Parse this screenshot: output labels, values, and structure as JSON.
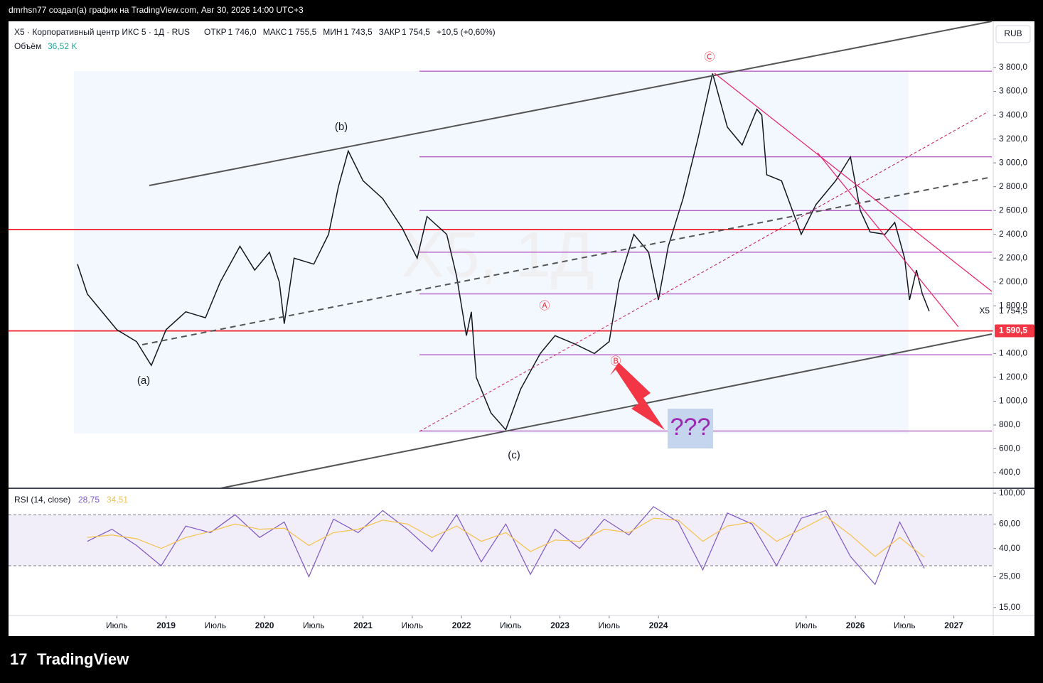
{
  "header": "dmrhsn77 создал(а) график на TradingView.com, Авг 30, 2026 14:00 UTC+3",
  "brand": "TradingView",
  "chart_data": {
    "type": "line",
    "symbol": "X5 · Корпоративный центр ИКС 5 · 1Д · RUS",
    "ohlc": [
      {
        "name": "ОТКР",
        "label": "1 746,0"
      },
      {
        "name": "МАКС",
        "label": "1 755,5"
      },
      {
        "name": "МИН",
        "label": "1 743,5"
      },
      {
        "name": "ЗАКР",
        "label": "1 754,5"
      }
    ],
    "change": "+10,5 (+0,60%)",
    "volume_name": "Объём",
    "volume_label": "36,52 K",
    "watermark": "X5, 1Д",
    "currency": "RUB",
    "series_name": "X5",
    "color": "#131722",
    "x": [
      2018.1,
      2018.2,
      2018.35,
      2018.5,
      2018.7,
      2018.85,
      2019.0,
      2019.2,
      2019.4,
      2019.55,
      2019.75,
      2019.9,
      2020.05,
      2020.15,
      2020.2,
      2020.3,
      2020.5,
      2020.65,
      2020.75,
      2020.85,
      2021.0,
      2021.2,
      2021.4,
      2021.55,
      2021.65,
      2021.85,
      2021.95,
      2022.05,
      2022.1,
      2022.15,
      2022.3,
      2022.45,
      2022.6,
      2022.8,
      2022.95,
      2023.15,
      2023.35,
      2023.5,
      2023.6,
      2023.75,
      2023.9,
      2024.0,
      2024.1,
      2024.25,
      2024.4,
      2024.55,
      2024.7,
      2024.85,
      2025.0,
      2025.05,
      2025.1,
      2025.25,
      2025.45,
      2025.6,
      2025.8,
      2025.95,
      2026.05,
      2026.15,
      2026.3,
      2026.4,
      2026.5,
      2026.55,
      2026.62,
      2026.68,
      2026.75
    ],
    "values": [
      2150,
      1900,
      1750,
      1600,
      1500,
      1300,
      1600,
      1750,
      1700,
      2000,
      2300,
      2100,
      2250,
      2000,
      1650,
      2200,
      2150,
      2400,
      2800,
      3100,
      2850,
      2700,
      2450,
      2200,
      2550,
      2400,
      2050,
      1550,
      1750,
      1200,
      900,
      760,
      1100,
      1400,
      1550,
      1480,
      1400,
      1500,
      2000,
      2400,
      2250,
      1850,
      2300,
      2700,
      3200,
      3750,
      3300,
      3150,
      3450,
      3400,
      2900,
      2850,
      2400,
      2650,
      2850,
      3050,
      2600,
      2420,
      2400,
      2500,
      2200,
      1850,
      2100,
      1900,
      1754.5
    ],
    "last_label": "1 754,5",
    "levels": [
      {
        "value": 3770,
        "color": "#9c27b0"
      },
      {
        "value": 3050,
        "color": "#9c27b0"
      },
      {
        "value": 2600,
        "color": "#9c27b0"
      },
      {
        "value": 2440,
        "color": "#f23645"
      },
      {
        "value": 2250,
        "color": "#9c27b0"
      },
      {
        "value": 1900,
        "color": "#9c27b0"
      },
      {
        "value": 1590.5,
        "label": "1 590,5",
        "color": "#f23645"
      },
      {
        "value": 1390,
        "color": "#9c27b0"
      },
      {
        "value": 750,
        "color": "#9c27b0"
      }
    ],
    "waves": [
      "(a)",
      "(b)",
      "(c)",
      "Ⓐ",
      "Ⓑ",
      "Ⓒ"
    ],
    "question": "???",
    "xlim": [
      2017.4,
      2027.4
    ],
    "xticks": [
      {
        "value": 2018.5,
        "label": "Июль"
      },
      2019,
      {
        "value": 2019.5,
        "label": "Июль"
      },
      2020,
      {
        "value": 2020.5,
        "label": "Июль"
      },
      2021,
      {
        "value": 2021.5,
        "label": "Июль"
      },
      2022,
      {
        "value": 2022.5,
        "label": "Июль"
      },
      2023,
      {
        "value": 2023.5,
        "label": "Июль"
      },
      2024,
      {
        "value": 2025.5,
        "label": "Июль"
      },
      2026,
      {
        "value": 2026.5,
        "label": "Июль"
      },
      2027
    ],
    "ylim": [
      269,
      4188
    ],
    "yticks": [
      {
        "value": 400,
        "label": "400,0"
      },
      {
        "value": 600,
        "label": "600,0"
      },
      {
        "value": 800,
        "label": "800,0"
      },
      {
        "value": 1000,
        "label": "1 000,0"
      },
      {
        "value": 1200,
        "label": "1 200,0"
      },
      {
        "value": 1400,
        "label": "1 400,0"
      },
      {
        "value": 1800,
        "label": "1 800,0"
      },
      {
        "value": 2000,
        "label": "2 000,0"
      },
      {
        "value": 2200,
        "label": "2 200,0"
      },
      {
        "value": 2400,
        "label": "2 400,0"
      },
      {
        "value": 2600,
        "label": "2 600,0"
      },
      {
        "value": 2800,
        "label": "2 800,0"
      },
      {
        "value": 3000,
        "label": "3 000,0"
      },
      {
        "value": 3200,
        "label": "3 200,0"
      },
      {
        "value": 3400,
        "label": "3 400,0"
      },
      {
        "value": 3600,
        "label": "3 600,0"
      },
      {
        "value": 3800,
        "label": "3 800,0"
      }
    ],
    "rsi": {
      "title": "RSI (14, close)",
      "log": true,
      "ylim": [
        13.3,
        107.3
      ],
      "yticks": [
        {
          "value": 15,
          "label": "15,00"
        },
        {
          "value": 25,
          "label": "25,00"
        },
        {
          "value": 40,
          "label": "40,00"
        },
        {
          "value": 60,
          "label": "60,00"
        },
        {
          "value": 100,
          "label": "100,00"
        }
      ],
      "bands": [
        30,
        70
      ],
      "x": [
        2018.2,
        2018.45,
        2018.7,
        2018.95,
        2019.2,
        2019.45,
        2019.7,
        2019.95,
        2020.2,
        2020.45,
        2020.7,
        2020.95,
        2021.2,
        2021.45,
        2021.7,
        2021.95,
        2022.2,
        2022.45,
        2022.7,
        2022.95,
        2023.2,
        2023.45,
        2023.7,
        2023.95,
        2024.2,
        2024.45,
        2024.7,
        2024.95,
        2025.2,
        2025.45,
        2025.7,
        2025.95,
        2026.2,
        2026.45,
        2026.7
      ],
      "series": [
        {
          "name": "RSI",
          "label": "28,75",
          "color": "#7e57c2",
          "values": [
            45,
            55,
            42,
            30,
            58,
            52,
            70,
            48,
            62,
            25,
            65,
            52,
            75,
            55,
            38,
            70,
            32,
            60,
            26,
            55,
            40,
            65,
            50,
            80,
            62,
            28,
            72,
            60,
            30,
            66,
            75,
            35,
            22,
            62,
            28.75
          ]
        },
        {
          "name": "MA",
          "label": "34,51",
          "color": "#f5c14b",
          "values": [
            48,
            50,
            47,
            40,
            48,
            53,
            60,
            55,
            56,
            42,
            52,
            55,
            64,
            60,
            48,
            58,
            45,
            52,
            38,
            46,
            45,
            55,
            52,
            66,
            64,
            45,
            58,
            62,
            45,
            55,
            68,
            50,
            35,
            48,
            34.51
          ]
        }
      ]
    }
  }
}
